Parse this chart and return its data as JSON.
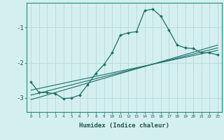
{
  "xlabel": "Humidex (Indice chaleur)",
  "background_color": "#d4efef",
  "grid_color": "#b8d8d8",
  "line_color": "#1a7068",
  "xlim": [
    -0.5,
    23.5
  ],
  "ylim": [
    -3.4,
    -0.3
  ],
  "yticks": [
    -3,
    -2,
    -1
  ],
  "xticks": [
    0,
    1,
    2,
    3,
    4,
    5,
    6,
    7,
    8,
    9,
    10,
    11,
    12,
    13,
    14,
    15,
    16,
    17,
    18,
    19,
    20,
    21,
    22,
    23
  ],
  "main_x": [
    0,
    1,
    2,
    3,
    4,
    5,
    6,
    7,
    8,
    9,
    10,
    11,
    12,
    13,
    14,
    15,
    16,
    17,
    18,
    19,
    20,
    21,
    22,
    23
  ],
  "main_y": [
    -2.55,
    -2.85,
    -2.85,
    -2.88,
    -3.02,
    -3.0,
    -2.92,
    -2.62,
    -2.3,
    -2.05,
    -1.72,
    -1.22,
    -1.15,
    -1.12,
    -0.52,
    -0.48,
    -0.68,
    -1.08,
    -1.5,
    -1.58,
    -1.6,
    -1.72,
    -1.72,
    -1.78
  ],
  "line1_x": [
    0,
    23
  ],
  "line1_y": [
    -3.05,
    -1.5
  ],
  "line2_x": [
    0,
    23
  ],
  "line2_y": [
    -2.92,
    -1.58
  ],
  "line3_x": [
    0,
    23
  ],
  "line3_y": [
    -2.78,
    -1.65
  ]
}
